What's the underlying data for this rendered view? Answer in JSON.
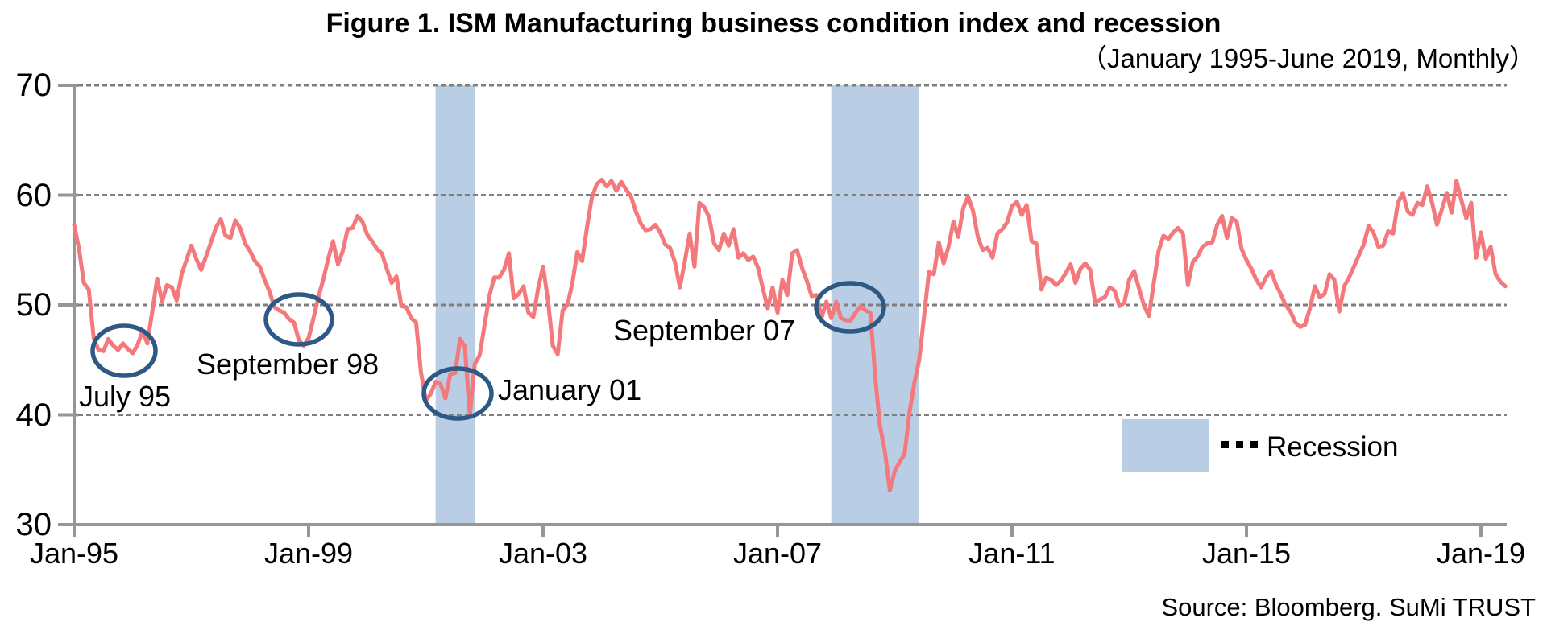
{
  "title": "Figure 1. ISM Manufacturing business condition index and recession",
  "subtitle": "（January 1995-June 2019, Monthly）",
  "source": "Source: Bloomberg. SuMi TRUST",
  "legend": {
    "label": "Recession"
  },
  "y_axis": {
    "ticks": [
      "70",
      "60",
      "50",
      "40",
      "30"
    ],
    "min": 30,
    "max": 70
  },
  "x_axis": {
    "ticks": [
      "Jan-95",
      "Jan-99",
      "Jan-03",
      "Jan-07",
      "Jan-11",
      "Jan-15",
      "Jan-19"
    ],
    "months_between_ticks": 48
  },
  "annotations": [
    {
      "label": "July 95"
    },
    {
      "label": "September 98"
    },
    {
      "label": "January 01"
    },
    {
      "label": "September 07"
    }
  ],
  "colors": {
    "line": "#F4797D",
    "recession_band": "#B9CDE4",
    "annotation_circle": "#2E5984",
    "gridline": "#7F7F7F",
    "axis": "#969696",
    "text": "#000000"
  },
  "chart_data": {
    "type": "line",
    "title": "Figure 1. ISM Manufacturing business condition index and recession",
    "subtitle": "（January 1995-June 2019, Monthly）",
    "frequency": "monthly",
    "x_start": "1995-01",
    "x_end": "2019-06",
    "ylim": [
      30,
      70
    ],
    "y_gridlines": [
      40,
      50,
      60,
      70
    ],
    "grid": "dotted-horizontal",
    "legend_position": "inside-lower-right",
    "series": [
      {
        "name": "ISM Manufacturing business condition index",
        "values": [
          57.3,
          55.1,
          52.0,
          51.4,
          47.0,
          45.9,
          45.8,
          46.9,
          46.3,
          45.9,
          46.5,
          46.0,
          45.6,
          46.4,
          47.6,
          46.5,
          49.4,
          52.4,
          50.3,
          51.8,
          51.6,
          50.4,
          52.8,
          54.1,
          55.4,
          54.2,
          53.2,
          54.4,
          55.7,
          57.0,
          57.8,
          56.3,
          56.1,
          57.7,
          57.0,
          55.6,
          54.9,
          54.0,
          53.5,
          52.3,
          51.2,
          49.8,
          49.5,
          49.3,
          48.7,
          48.4,
          46.8,
          46.3,
          47.0,
          48.8,
          50.7,
          52.3,
          54.2,
          55.8,
          53.7,
          54.9,
          56.9,
          57.0,
          58.1,
          57.6,
          56.4,
          55.8,
          55.1,
          54.7,
          53.3,
          52.0,
          52.6,
          49.9,
          49.8,
          48.8,
          48.4,
          43.9,
          41.3,
          41.9,
          43.0,
          42.8,
          41.5,
          43.7,
          43.8,
          46.9,
          46.2,
          39.9,
          44.6,
          45.4,
          48.1,
          50.8,
          52.5,
          52.5,
          53.2,
          54.7,
          50.6,
          51.0,
          51.7,
          49.3,
          48.9,
          51.5,
          53.5,
          50.4,
          46.3,
          45.5,
          49.5,
          50.0,
          52.0,
          54.8,
          54.0,
          57.1,
          59.8,
          61.0,
          61.4,
          60.8,
          61.3,
          60.4,
          61.2,
          60.5,
          59.9,
          58.5,
          57.4,
          56.8,
          56.9,
          57.3,
          56.6,
          55.5,
          55.2,
          53.9,
          51.6,
          53.9,
          56.5,
          53.5,
          59.3,
          58.9,
          58.0,
          55.6,
          55.0,
          56.5,
          55.4,
          56.9,
          54.3,
          54.7,
          54.1,
          54.4,
          53.4,
          51.5,
          49.7,
          51.6,
          49.3,
          52.3,
          50.9,
          54.7,
          55.0,
          53.4,
          52.2,
          50.8,
          50.9,
          48.8,
          50.3,
          48.8,
          50.3,
          48.8,
          48.6,
          48.6,
          49.3,
          49.9,
          49.5,
          49.3,
          43.4,
          38.9,
          36.6,
          33.1,
          34.9,
          35.7,
          36.4,
          40.2,
          42.9,
          45.0,
          49.0,
          53.0,
          52.8,
          55.7,
          53.8,
          55.3,
          57.6,
          56.2,
          58.8,
          59.9,
          58.6,
          56.2,
          55.0,
          55.2,
          54.3,
          56.5,
          56.9,
          57.5,
          59.0,
          59.4,
          58.2,
          59.1,
          55.8,
          55.6,
          51.4,
          52.5,
          52.3,
          51.8,
          52.2,
          52.9,
          53.7,
          52.0,
          53.3,
          53.8,
          53.2,
          50.2,
          50.5,
          50.7,
          51.6,
          51.3,
          49.9,
          50.2,
          52.3,
          53.1,
          51.5,
          50.0,
          49.0,
          51.9,
          54.9,
          56.3,
          56.0,
          56.6,
          57.0,
          56.5,
          51.8,
          53.9,
          54.4,
          55.3,
          55.6,
          55.7,
          57.3,
          58.1,
          56.1,
          57.9,
          57.6,
          55.1,
          54.1,
          53.3,
          52.3,
          51.6,
          52.5,
          53.1,
          51.9,
          51.0,
          50.0,
          49.4,
          48.4,
          48.0,
          48.2,
          49.7,
          51.7,
          50.7,
          51.0,
          52.8,
          52.3,
          49.4,
          51.7,
          52.5,
          53.5,
          54.5,
          55.5,
          57.2,
          56.6,
          55.3,
          55.4,
          56.7,
          56.5,
          59.3,
          60.2,
          58.5,
          58.2,
          59.3,
          59.1,
          60.8,
          59.3,
          57.3,
          58.7,
          60.2,
          58.4,
          61.3,
          59.5,
          57.9,
          59.3,
          54.3,
          56.6,
          54.2,
          55.3,
          52.8,
          52.1,
          51.7
        ]
      }
    ],
    "recessions": [
      {
        "from": "2001-03",
        "to": "2001-11"
      },
      {
        "from": "2007-12",
        "to": "2009-06"
      }
    ],
    "callouts": [
      {
        "label": "July 95",
        "x": "1995-07",
        "y": 45.8
      },
      {
        "label": "September 98",
        "x": "1998-09",
        "y": 48.7
      },
      {
        "label": "January 01",
        "x": "2001-01",
        "y": 41.3
      },
      {
        "label": "September 07",
        "x": "2007-09",
        "y": 50.9
      }
    ]
  }
}
